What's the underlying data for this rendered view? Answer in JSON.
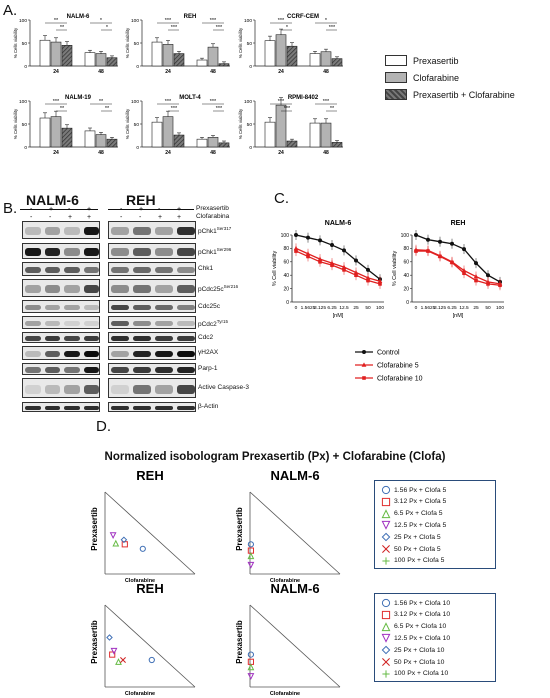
{
  "panels": {
    "a": "A.",
    "b": "B.",
    "c": "C.",
    "d": "D."
  },
  "colors": {
    "prex": "#ffffff",
    "clofa": "#b3b3b3",
    "combo": "#555555",
    "control": "#111111",
    "clofa5": "#e02020",
    "clofa10": "#e02020"
  },
  "panel_a": {
    "legend": [
      "Prexasertib",
      "Clofarabine",
      "Prexasertib + Clofarabine"
    ],
    "ylabel": "% Cells viability",
    "chart_data": [
      {
        "type": "bar",
        "title": "NALM-6",
        "categories": [
          "24",
          "48"
        ],
        "ylim": [
          0,
          100
        ],
        "series": [
          {
            "name": "Prexasertib",
            "values": [
              56,
              29
            ]
          },
          {
            "name": "Clofarabine",
            "values": [
              52,
              27
            ]
          },
          {
            "name": "Prexasertib + Clofarabine",
            "values": [
              45,
              18
            ]
          }
        ],
        "sig": [
          "**",
          "**",
          "*",
          "*"
        ]
      },
      {
        "type": "bar",
        "title": "REH",
        "categories": [
          "24",
          "48"
        ],
        "ylim": [
          0,
          100
        ],
        "series": [
          {
            "name": "Prexasertib",
            "values": [
              52,
              13
            ]
          },
          {
            "name": "Clofarabine",
            "values": [
              47,
              41
            ]
          },
          {
            "name": "Prexasertib + Clofarabine",
            "values": [
              27,
              5
            ]
          }
        ],
        "sig": [
          "***",
          "***",
          "***",
          "***"
        ]
      },
      {
        "type": "bar",
        "title": "CCRF-CEM",
        "categories": [
          "24",
          "48"
        ],
        "ylim": [
          0,
          100
        ],
        "series": [
          {
            "name": "Prexasertib",
            "values": [
              55,
              27
            ]
          },
          {
            "name": "Clofarabine",
            "values": [
              68,
              31
            ]
          },
          {
            "name": "Prexasertib + Clofarabine",
            "values": [
              43,
              16
            ]
          }
        ],
        "sig": [
          "***",
          "*",
          "*",
          "***"
        ]
      },
      {
        "type": "bar",
        "title": "NALM-19",
        "categories": [
          "24",
          "48"
        ],
        "ylim": [
          0,
          100
        ],
        "series": [
          {
            "name": "Prexasertib",
            "values": [
              63,
              35
            ]
          },
          {
            "name": "Clofarabine",
            "values": [
              66,
              27
            ]
          },
          {
            "name": "Prexasertib + Clofarabine",
            "values": [
              41,
              17
            ]
          }
        ],
        "sig": [
          "***",
          "**",
          "**",
          "**"
        ]
      },
      {
        "type": "bar",
        "title": "MOLT-4",
        "categories": [
          "24",
          "48"
        ],
        "ylim": [
          0,
          100
        ],
        "series": [
          {
            "name": "Prexasertib",
            "values": [
              54,
              17
            ]
          },
          {
            "name": "Clofarabine",
            "values": [
              66,
              21
            ]
          },
          {
            "name": "Prexasertib + Clofarabine",
            "values": [
              26,
              9
            ]
          }
        ],
        "sig": [
          "***",
          "***",
          "***",
          "***"
        ]
      },
      {
        "type": "bar",
        "title": "RPMI-8402",
        "categories": [
          "24",
          "48"
        ],
        "ylim": [
          0,
          100
        ],
        "series": [
          {
            "name": "Prexasertib",
            "values": [
              54,
              52
            ]
          },
          {
            "name": "Clofarabine",
            "values": [
              91,
              52
            ]
          },
          {
            "name": "Prexasertib + Clofarabine",
            "values": [
              13,
              10
            ]
          }
        ],
        "sig": [
          "***",
          "***",
          "***",
          "**"
        ]
      }
    ]
  },
  "panel_b": {
    "cell_lines": [
      "NALM-6",
      "REH"
    ],
    "treat_labels": [
      "Prexasertib",
      "Clofarabina"
    ],
    "treat_signs": {
      "prex": [
        "-",
        "+",
        "-",
        "+"
      ],
      "clofa": [
        "-",
        "-",
        "+",
        "+"
      ]
    },
    "proteins": [
      "pChk1Ser317",
      "pChk1Ser296",
      "Chk1",
      "pCdc25cSer216",
      "Cdc25c",
      "pCdc2Tyr15",
      "Cdc2",
      "γH2AX",
      "Parp-1",
      "Active Caspase-3",
      "β-Actin"
    ],
    "protein_main": [
      "pChk1",
      "pChk1",
      "Chk1",
      "pCdc25c",
      "Cdc25c",
      "pCdc2",
      "Cdc2",
      "γH2AX",
      "Parp-1",
      "Active Caspase-3",
      "β-Actin"
    ],
    "protein_sup": [
      "Ser317",
      "Ser296",
      "",
      "Ser216",
      "",
      "Tyr15",
      "",
      "",
      "",
      "",
      ""
    ]
  },
  "panel_c": {
    "ylabel": "% Cell viability",
    "xlabel": "[nM]",
    "legend": [
      "Control",
      "Clofarabine 5",
      "Clofarabine 10"
    ],
    "chart_data": [
      {
        "type": "line",
        "title": "NALM-6",
        "x": [
          "0",
          "1.5625",
          "3.125",
          "6.25",
          "12.5",
          "25",
          "50",
          "100"
        ],
        "ylim": [
          0,
          100
        ],
        "series": [
          {
            "name": "Control",
            "values": [
              100,
              96,
              92,
              85,
              77,
              62,
              48,
              34
            ]
          },
          {
            "name": "Clofarabine 5",
            "values": [
              80,
              72,
              64,
              58,
              52,
              44,
              36,
              31
            ]
          },
          {
            "name": "Clofarabine 10",
            "values": [
              76,
              68,
              60,
              55,
              48,
              40,
              32,
              27
            ]
          }
        ]
      },
      {
        "type": "line",
        "title": "REH",
        "x": [
          "0",
          "1.5625",
          "3.125",
          "6.25",
          "12.5",
          "25",
          "50",
          "100"
        ],
        "ylim": [
          0,
          100
        ],
        "series": [
          {
            "name": "Control",
            "values": [
              100,
              93,
              90,
              87,
              79,
              58,
              40,
              30
            ]
          },
          {
            "name": "Clofarabine 5",
            "values": [
              78,
              77,
              69,
              60,
              47,
              38,
              30,
              27
            ]
          },
          {
            "name": "Clofarabine 10",
            "values": [
              76,
              76,
              68,
              59,
              43,
              32,
              27,
              25
            ]
          }
        ]
      }
    ]
  },
  "panel_d": {
    "title": "Normalized isobologram Prexasertib (Px) + Clofarabine (Clofa)",
    "xlabel": "Clofarabine",
    "ylabel": "Prexasertib",
    "plots": [
      "REH",
      "NALM-6",
      "REH",
      "NALM-6"
    ],
    "legend_clofa5": [
      "1.56 Px + Clofa 5",
      "3.12 Px + Clofa 5",
      "6.5 Px + Clofa 5",
      "12.5 Px + Clofa 5",
      "25 Px + Clofa 5",
      "50 Px + Clofa 5",
      "100 Px + Clofa 5"
    ],
    "legend_clofa10": [
      "1.56 Px + Clofa 10",
      "3.12 Px + Clofa 10",
      "6.5 Px + Clofa 10",
      "12.5 Px + Clofa 10",
      "25 Px + Clofa 10",
      "50 Px + Clofa 10",
      "100 Px + Clofa 10"
    ],
    "marker_colors": [
      "#3f6fb5",
      "#e03030",
      "#66bb44",
      "#a030c0",
      "#3f6fb5",
      "#d02020",
      "#66bb44"
    ],
    "chart_data": [
      {
        "type": "scatter",
        "title": "REH",
        "points": [
          [
            0.42,
            0.28
          ],
          [
            0.22,
            0.33
          ],
          [
            0.12,
            0.34
          ],
          [
            0.09,
            0.43
          ],
          [
            0.21,
            0.38
          ]
        ]
      },
      {
        "type": "scatter",
        "title": "NALM-6",
        "points": [
          [
            0.01,
            0.33
          ],
          [
            0.01,
            0.26
          ],
          [
            0.01,
            0.2
          ],
          [
            0.01,
            0.1
          ]
        ]
      },
      {
        "type": "scatter",
        "title": "REH",
        "points": [
          [
            0.52,
            0.3
          ],
          [
            0.08,
            0.36
          ],
          [
            0.15,
            0.28
          ],
          [
            0.1,
            0.4
          ],
          [
            0.05,
            0.55
          ],
          [
            0.2,
            0.3
          ]
        ]
      },
      {
        "type": "scatter",
        "title": "NALM-6",
        "points": [
          [
            0.01,
            0.36
          ],
          [
            0.01,
            0.28
          ],
          [
            0.01,
            0.22
          ],
          [
            0.01,
            0.12
          ]
        ]
      }
    ]
  }
}
